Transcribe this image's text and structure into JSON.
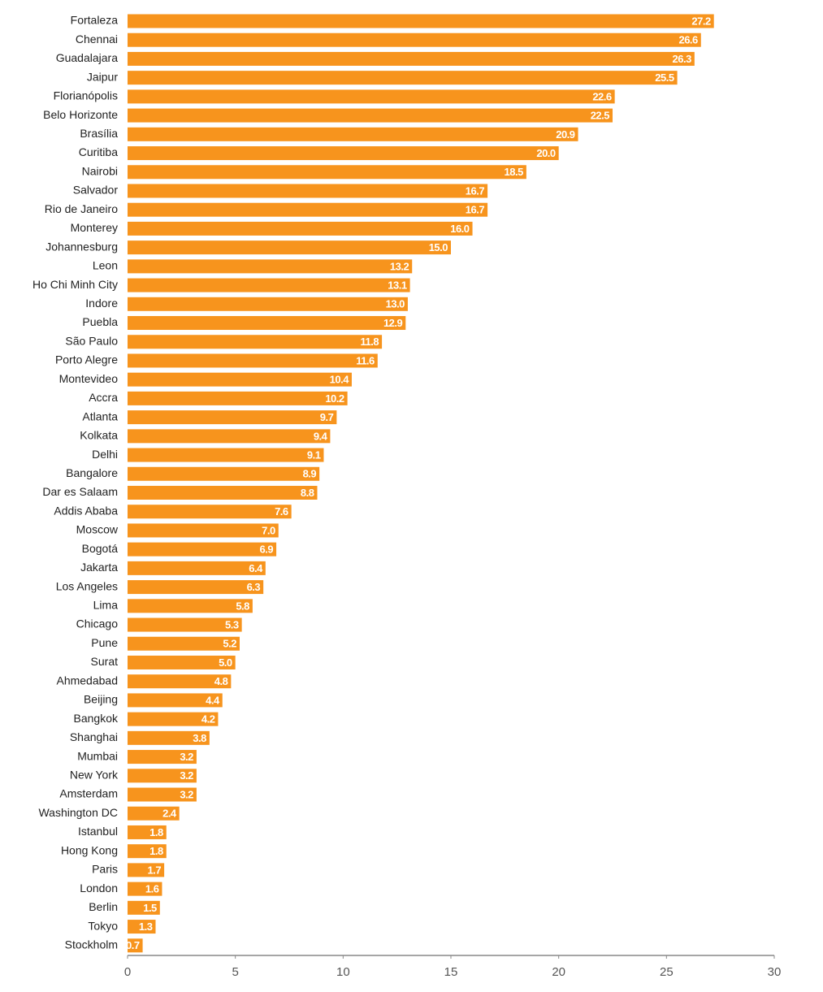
{
  "chart_data": {
    "type": "barh",
    "color": "#f7941d",
    "categories": [
      "Fortaleza",
      "Chennai",
      "Guadalajara",
      "Jaipur",
      "Florianópolis",
      "Belo Horizonte",
      "Brasília",
      "Curitiba",
      "Nairobi",
      "Salvador",
      "Rio de Janeiro",
      "Monterey",
      "Johannesburg",
      "Leon",
      "Ho Chi Minh City",
      "Indore",
      "Puebla",
      "São Paulo",
      "Porto Alegre",
      "Montevideo",
      "Accra",
      "Atlanta",
      "Kolkata",
      "Delhi",
      "Bangalore",
      "Dar es Salaam",
      "Addis Ababa",
      "Moscow",
      "Bogotá",
      "Jakarta",
      "Los Angeles",
      "Lima",
      "Chicago",
      "Pune",
      "Surat",
      "Ahmedabad",
      "Beijing",
      "Bangkok",
      "Shanghai",
      "Mumbai",
      "New York",
      "Amsterdam",
      "Washington DC",
      "Istanbul",
      "Hong Kong",
      "Paris",
      "London",
      "Berlin",
      "Tokyo",
      "Stockholm"
    ],
    "values": [
      27.2,
      26.6,
      26.3,
      25.5,
      22.6,
      22.5,
      20.9,
      20.0,
      18.5,
      16.7,
      16.7,
      16.0,
      15.0,
      13.2,
      13.1,
      13.0,
      12.9,
      11.8,
      11.6,
      10.4,
      10.2,
      9.7,
      9.4,
      9.1,
      8.9,
      8.8,
      7.6,
      7.0,
      6.9,
      6.4,
      6.3,
      5.8,
      5.3,
      5.2,
      5.0,
      4.8,
      4.4,
      4.2,
      3.8,
      3.2,
      3.2,
      3.2,
      2.4,
      1.8,
      1.8,
      1.7,
      1.6,
      1.5,
      1.3,
      0.7
    ],
    "value_labels": [
      "27.2",
      "26.6",
      "26.3",
      "25.5",
      "22.6",
      "22.5",
      "20.9",
      "20.0",
      "18.5",
      "16.7",
      "16.7",
      "16.0",
      "15.0",
      "13.2",
      "13.1",
      "13.0",
      "12.9",
      "11.8",
      "11.6",
      "10.4",
      "10.2",
      "9.7",
      "9.4",
      "9.1",
      "8.9",
      "8.8",
      "7.6",
      "7.0",
      "6.9",
      "6.4",
      "6.3",
      "5.8",
      "5.3",
      "5.2",
      "5.0",
      "4.8",
      "4.4",
      "4.2",
      "3.8",
      "3.2",
      "3.2",
      "3.2",
      "2.4",
      "1.8",
      "1.8",
      "1.7",
      "1.6",
      "1.5",
      "1.3",
      "0.7"
    ],
    "xlim": [
      0,
      30
    ],
    "xticks": [
      0,
      5,
      10,
      15,
      20,
      25,
      30
    ]
  }
}
